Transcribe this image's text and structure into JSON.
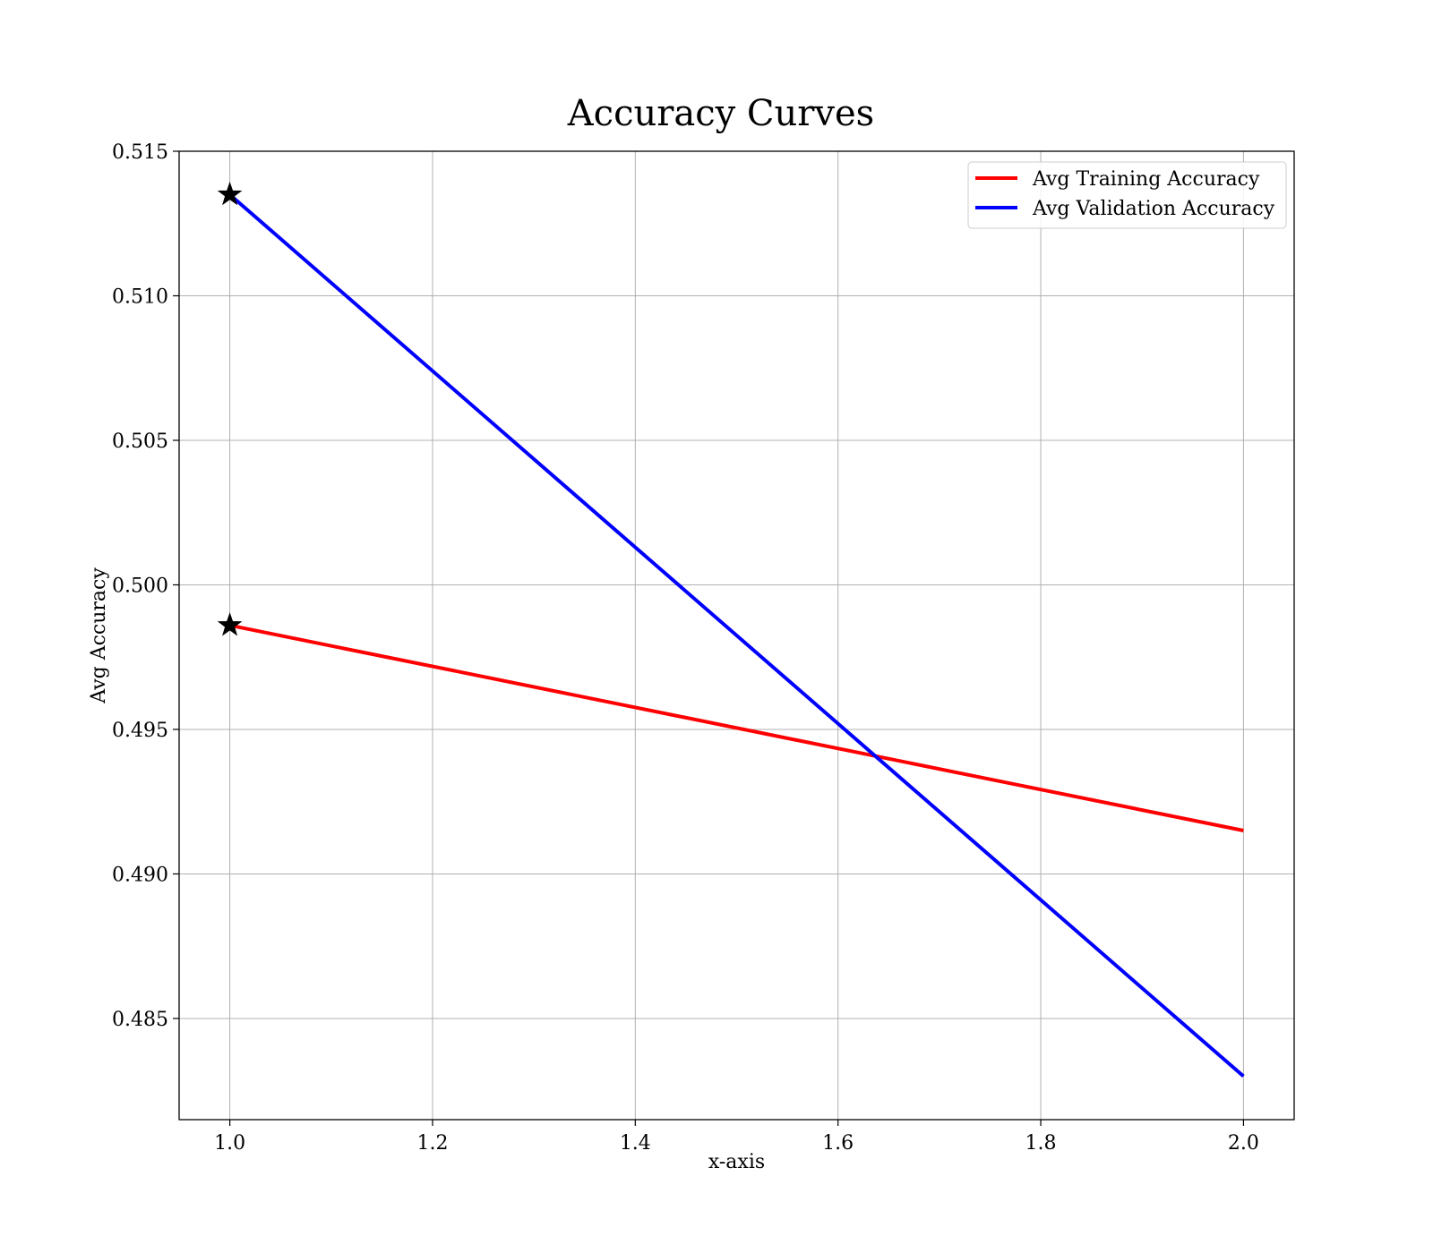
{
  "chart_data": {
    "type": "line",
    "title": "Accuracy Curves",
    "xlabel": "x-axis",
    "ylabel": "Avg Accuracy",
    "x": [
      1.0,
      2.0
    ],
    "xlim": [
      0.95,
      2.05
    ],
    "ylim": [
      0.4815,
      0.515
    ],
    "xticks": [
      1.0,
      1.2,
      1.4,
      1.6,
      1.8,
      2.0
    ],
    "xtick_labels": [
      "1.0",
      "1.2",
      "1.4",
      "1.6",
      "1.8",
      "2.0"
    ],
    "yticks": [
      0.485,
      0.49,
      0.495,
      0.5,
      0.505,
      0.51,
      0.515
    ],
    "ytick_labels": [
      "0.485",
      "0.490",
      "0.495",
      "0.500",
      "0.505",
      "0.510",
      "0.515"
    ],
    "grid": true,
    "legend_position": "top-right",
    "series": [
      {
        "name": "Avg Training Accuracy",
        "color": "#ff0000",
        "values": [
          0.4986,
          0.4915
        ],
        "max_marker": {
          "x": 1.0,
          "y": 0.4986,
          "symbol": "star"
        }
      },
      {
        "name": "Avg Validation Accuracy",
        "color": "#0000ff",
        "values": [
          0.5135,
          0.483
        ],
        "max_marker": {
          "x": 1.0,
          "y": 0.5135,
          "symbol": "star"
        }
      }
    ]
  }
}
